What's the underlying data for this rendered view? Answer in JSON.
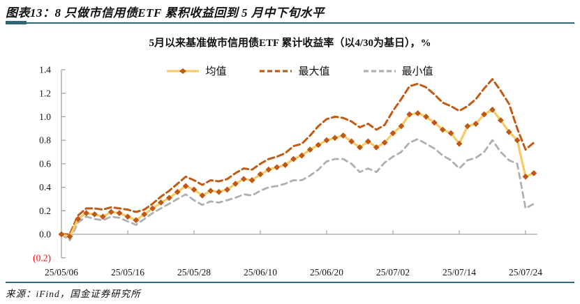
{
  "header": {
    "title": "图表13：8 只做市信用债ETF 累积收益回到 5 月中下旬水平"
  },
  "chart": {
    "title": "5月以来基准做市信用债ETF 累计收益率（以4/30为基日），%"
  },
  "chart_data": {
    "type": "line",
    "title": "5月以来基准做市信用债ETF 累计收益率（以4/30为基日），%",
    "ylabel": "",
    "xlabel": "",
    "ylim": [
      -0.2,
      1.4
    ],
    "grid": false,
    "legend_position": "top",
    "axis_color": "#A3A3A3",
    "x": [
      "25/05/06",
      "25/05/07",
      "25/05/08",
      "25/05/09",
      "25/05/12",
      "25/05/13",
      "25/05/14",
      "25/05/15",
      "25/05/16",
      "25/05/19",
      "25/05/20",
      "25/05/21",
      "25/05/22",
      "25/05/23",
      "25/05/26",
      "25/05/27",
      "25/05/28",
      "25/05/29",
      "25/05/30",
      "25/06/03",
      "25/06/04",
      "25/06/05",
      "25/06/06",
      "25/06/09",
      "25/06/10",
      "25/06/11",
      "25/06/12",
      "25/06/13",
      "25/06/16",
      "25/06/17",
      "25/06/18",
      "25/06/19",
      "25/06/20",
      "25/06/23",
      "25/06/24",
      "25/06/25",
      "25/06/26",
      "25/06/27",
      "25/06/30",
      "25/07/01",
      "25/07/02",
      "25/07/03",
      "25/07/04",
      "25/07/07",
      "25/07/08",
      "25/07/09",
      "25/07/10",
      "25/07/11",
      "25/07/14",
      "25/07/15",
      "25/07/16",
      "25/07/17",
      "25/07/18",
      "25/07/21",
      "25/07/22",
      "25/07/23",
      "25/07/24",
      "25/07/25"
    ],
    "series": [
      {
        "name": "均值",
        "color": "#F9C962",
        "style": "solid",
        "width": 3.2,
        "marker": "diamond",
        "marker_color": "#BF5715",
        "values": [
          0.0,
          -0.02,
          0.13,
          0.18,
          0.17,
          0.15,
          0.19,
          0.18,
          0.15,
          0.12,
          0.17,
          0.22,
          0.27,
          0.31,
          0.36,
          0.41,
          0.38,
          0.33,
          0.37,
          0.36,
          0.38,
          0.43,
          0.47,
          0.46,
          0.51,
          0.55,
          0.57,
          0.59,
          0.64,
          0.67,
          0.72,
          0.76,
          0.8,
          0.82,
          0.84,
          0.79,
          0.74,
          0.79,
          0.74,
          0.78,
          0.86,
          0.92,
          1.02,
          1.03,
          1.0,
          0.95,
          0.89,
          0.86,
          0.77,
          0.92,
          0.94,
          1.02,
          1.06,
          0.97,
          0.87,
          0.8,
          0.49,
          0.52
        ]
      },
      {
        "name": "最大值",
        "color": "#C05A15",
        "style": "dashed",
        "dash": "9,5",
        "width": 3,
        "values": [
          0.0,
          0.0,
          0.16,
          0.22,
          0.22,
          0.21,
          0.23,
          0.22,
          0.21,
          0.19,
          0.21,
          0.26,
          0.32,
          0.37,
          0.43,
          0.49,
          0.46,
          0.42,
          0.46,
          0.45,
          0.47,
          0.52,
          0.56,
          0.55,
          0.6,
          0.64,
          0.66,
          0.69,
          0.75,
          0.77,
          0.84,
          0.92,
          0.98,
          1.0,
          0.99,
          0.96,
          0.91,
          0.94,
          0.89,
          0.93,
          1.05,
          1.15,
          1.26,
          1.28,
          1.25,
          1.19,
          1.12,
          1.09,
          1.05,
          1.09,
          1.15,
          1.24,
          1.32,
          1.22,
          1.11,
          0.9,
          0.72,
          0.78
        ]
      },
      {
        "name": "最小值",
        "color": "#AFAFAF",
        "style": "dashed",
        "dash": "8,6",
        "width": 2.8,
        "values": [
          0.0,
          -0.05,
          0.1,
          0.15,
          0.13,
          0.12,
          0.15,
          0.14,
          0.11,
          0.08,
          0.13,
          0.18,
          0.22,
          0.26,
          0.3,
          0.34,
          0.29,
          0.25,
          0.28,
          0.27,
          0.29,
          0.31,
          0.34,
          0.33,
          0.37,
          0.4,
          0.41,
          0.43,
          0.46,
          0.46,
          0.5,
          0.55,
          0.62,
          0.64,
          0.64,
          0.6,
          0.53,
          0.56,
          0.53,
          0.61,
          0.66,
          0.7,
          0.78,
          0.81,
          0.77,
          0.73,
          0.67,
          0.63,
          0.56,
          0.63,
          0.65,
          0.7,
          0.8,
          0.7,
          0.63,
          0.6,
          0.22,
          0.26
        ]
      }
    ],
    "y_ticks": [
      {
        "label": "1.4",
        "value": 1.4
      },
      {
        "label": "1.2",
        "value": 1.2
      },
      {
        "label": "1.0",
        "value": 1.0
      },
      {
        "label": "0.8",
        "value": 0.8
      },
      {
        "label": "0.6",
        "value": 0.6
      },
      {
        "label": "0.4",
        "value": 0.4
      },
      {
        "label": "0.2",
        "value": 0.2
      },
      {
        "label": "0.0",
        "value": 0.0
      },
      {
        "label": "(0.2)",
        "value": -0.2,
        "color": "#FF0000"
      }
    ],
    "x_ticks": [
      {
        "label": "25/05/06",
        "index": 0
      },
      {
        "label": "25/05/16",
        "index": 8
      },
      {
        "label": "25/05/28",
        "index": 16
      },
      {
        "label": "25/06/10",
        "index": 24
      },
      {
        "label": "25/06/20",
        "index": 32
      },
      {
        "label": "25/07/02",
        "index": 40
      },
      {
        "label": "25/07/14",
        "index": 48
      },
      {
        "label": "25/07/24",
        "index": 56
      }
    ]
  },
  "footer": {
    "source": "来源：iFind，国金证券研究所"
  }
}
